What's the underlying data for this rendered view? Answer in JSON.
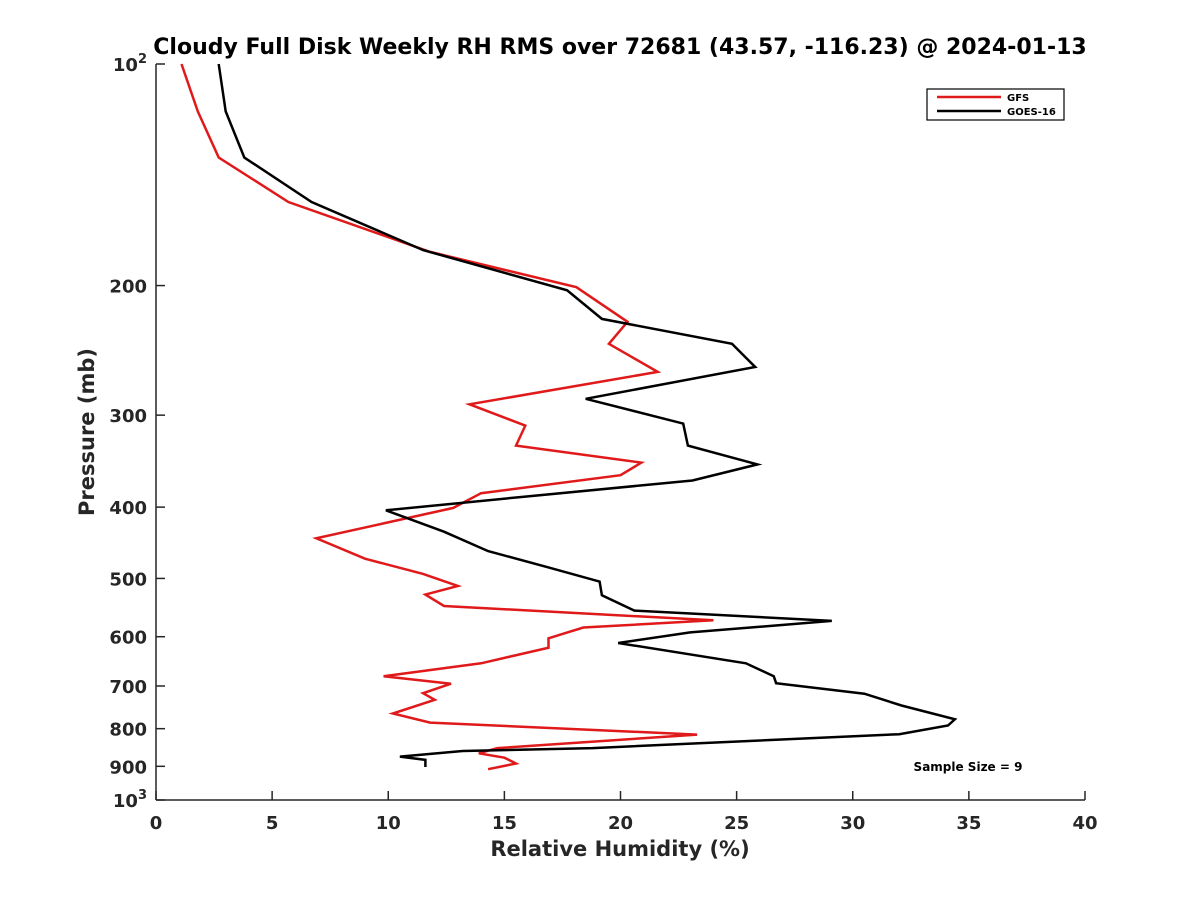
{
  "chart_data": {
    "type": "line",
    "title": "Cloudy Full Disk Weekly RH RMS over 72681 (43.57, -116.23) @ 2024-01-13",
    "xlabel": "Relative Humidity (%)",
    "ylabel": "Pressure (mb)",
    "xlim": [
      0,
      40
    ],
    "ylim": [
      100,
      1000
    ],
    "yscale": "log",
    "y_reversed": true,
    "grid": false,
    "legend_position": "top-right",
    "annotation": "Sample Size = 9",
    "x_ticks": [
      0,
      5,
      10,
      15,
      20,
      25,
      30,
      35,
      40
    ],
    "x_tick_labels": [
      "0",
      "5",
      "10",
      "15",
      "20",
      "25",
      "30",
      "35",
      "40"
    ],
    "y_ticks": [
      100,
      200,
      300,
      400,
      500,
      600,
      700,
      800,
      900,
      1000
    ],
    "y_tick_labels": [
      {
        "base": "10",
        "exp": "2"
      },
      {
        "base": "200",
        "exp": ""
      },
      {
        "base": "300",
        "exp": ""
      },
      {
        "base": "400",
        "exp": ""
      },
      {
        "base": "500",
        "exp": ""
      },
      {
        "base": "600",
        "exp": ""
      },
      {
        "base": "700",
        "exp": ""
      },
      {
        "base": "800",
        "exp": ""
      },
      {
        "base": "900",
        "exp": ""
      },
      {
        "base": "10",
        "exp": "3"
      }
    ],
    "series": [
      {
        "name": "GFS",
        "color": "#e0191a",
        "points": [
          [
            1.1,
            100
          ],
          [
            1.8,
            116
          ],
          [
            2.7,
            134
          ],
          [
            5.7,
            154
          ],
          [
            11.8,
            180
          ],
          [
            18.1,
            201
          ],
          [
            20.3,
            224
          ],
          [
            19.5,
            240
          ],
          [
            21.6,
            262
          ],
          [
            13.5,
            290
          ],
          [
            15.9,
            310
          ],
          [
            15.5,
            330
          ],
          [
            20.9,
            348
          ],
          [
            20.0,
            362
          ],
          [
            14.0,
            383
          ],
          [
            12.8,
            401
          ],
          [
            6.9,
            441
          ],
          [
            9.0,
            470
          ],
          [
            11.5,
            493
          ],
          [
            13.0,
            512
          ],
          [
            11.6,
            526
          ],
          [
            12.4,
            545
          ],
          [
            24.0,
            570
          ],
          [
            18.4,
            583
          ],
          [
            16.9,
            603
          ],
          [
            16.9,
            621
          ],
          [
            14.0,
            652
          ],
          [
            9.8,
            679
          ],
          [
            12.7,
            695
          ],
          [
            11.5,
            716
          ],
          [
            12.0,
            731
          ],
          [
            10.2,
            763
          ],
          [
            11.8,
            785
          ],
          [
            23.3,
            815
          ],
          [
            14.7,
            850
          ],
          [
            13.9,
            864
          ],
          [
            15.0,
            876
          ],
          [
            15.5,
            892
          ],
          [
            14.3,
            908
          ]
        ]
      },
      {
        "name": "GOES-16",
        "color": "#000000",
        "points": [
          [
            2.7,
            100
          ],
          [
            3.0,
            116
          ],
          [
            3.8,
            134
          ],
          [
            6.7,
            154
          ],
          [
            11.5,
            179
          ],
          [
            17.7,
            203
          ],
          [
            19.2,
            222
          ],
          [
            24.8,
            240
          ],
          [
            25.8,
            258
          ],
          [
            18.5,
            285
          ],
          [
            22.7,
            308
          ],
          [
            22.9,
            330
          ],
          [
            25.9,
            350
          ],
          [
            23.1,
            368
          ],
          [
            15.9,
            387
          ],
          [
            9.9,
            404
          ],
          [
            12.4,
            432
          ],
          [
            14.3,
            459
          ],
          [
            16.9,
            483
          ],
          [
            19.1,
            505
          ],
          [
            19.2,
            527
          ],
          [
            20.6,
            553
          ],
          [
            29.1,
            571
          ],
          [
            23.0,
            592
          ],
          [
            19.9,
            612
          ],
          [
            25.4,
            652
          ],
          [
            26.6,
            679
          ],
          [
            26.7,
            694
          ],
          [
            30.5,
            717
          ],
          [
            32.1,
            744
          ],
          [
            34.4,
            777
          ],
          [
            34.1,
            792
          ],
          [
            32.0,
            814
          ],
          [
            18.8,
            850
          ],
          [
            13.2,
            858
          ],
          [
            10.5,
            873
          ],
          [
            11.6,
            882
          ],
          [
            11.6,
            902
          ]
        ]
      }
    ]
  }
}
